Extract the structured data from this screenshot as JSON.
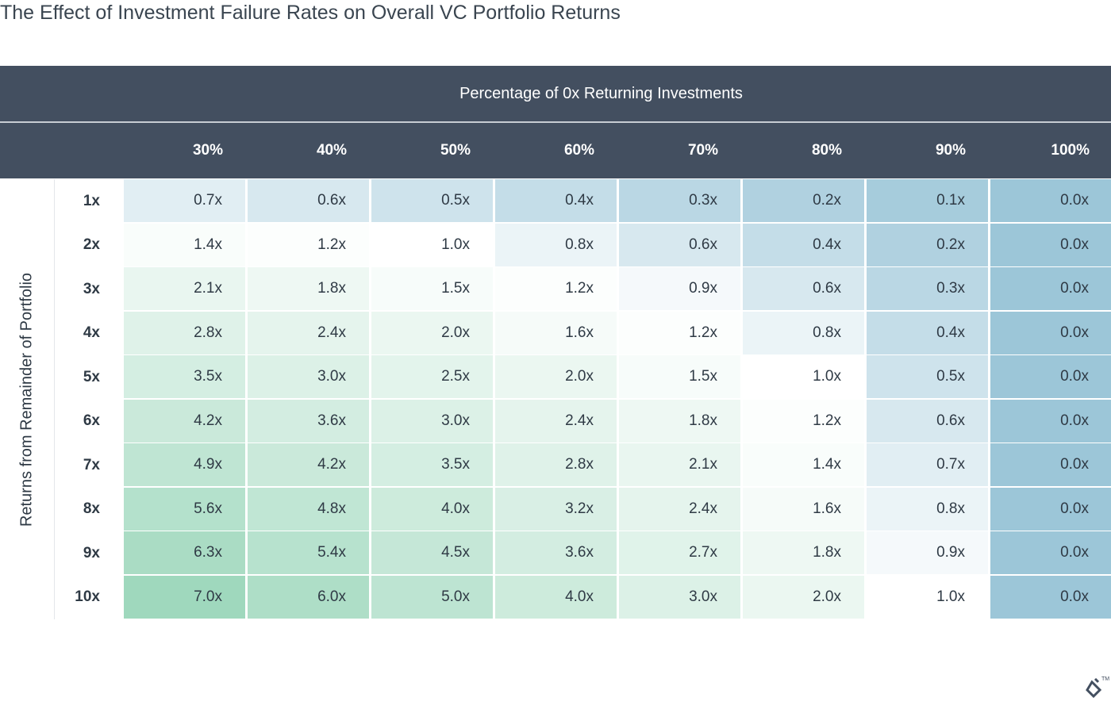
{
  "title": "The Effect of Investment Failure Rates on Overall VC Portfolio Returns",
  "chart_data": {
    "type": "table",
    "column_group_label": "Percentage of 0x Returning Investments",
    "row_group_label": "Returns from Remainder of Portfolio",
    "columns": [
      "30%",
      "40%",
      "50%",
      "60%",
      "70%",
      "80%",
      "90%",
      "100%"
    ],
    "rows": [
      "1x",
      "2x",
      "3x",
      "4x",
      "5x",
      "6x",
      "7x",
      "8x",
      "9x",
      "10x"
    ],
    "cells": [
      [
        "0.7x",
        "0.6x",
        "0.5x",
        "0.4x",
        "0.3x",
        "0.2x",
        "0.1x",
        "0.0x"
      ],
      [
        "1.4x",
        "1.2x",
        "1.0x",
        "0.8x",
        "0.6x",
        "0.4x",
        "0.2x",
        "0.0x"
      ],
      [
        "2.1x",
        "1.8x",
        "1.5x",
        "1.2x",
        "0.9x",
        "0.6x",
        "0.3x",
        "0.0x"
      ],
      [
        "2.8x",
        "2.4x",
        "2.0x",
        "1.6x",
        "1.2x",
        "0.8x",
        "0.4x",
        "0.0x"
      ],
      [
        "3.5x",
        "3.0x",
        "2.5x",
        "2.0x",
        "1.5x",
        "1.0x",
        "0.5x",
        "0.0x"
      ],
      [
        "4.2x",
        "3.6x",
        "3.0x",
        "2.4x",
        "1.8x",
        "1.2x",
        "0.6x",
        "0.0x"
      ],
      [
        "4.9x",
        "4.2x",
        "3.5x",
        "2.8x",
        "2.1x",
        "1.4x",
        "0.7x",
        "0.0x"
      ],
      [
        "5.6x",
        "4.8x",
        "4.0x",
        "3.2x",
        "2.4x",
        "1.6x",
        "0.8x",
        "0.0x"
      ],
      [
        "6.3x",
        "5.4x",
        "4.5x",
        "3.6x",
        "2.7x",
        "1.8x",
        "0.9x",
        "0.0x"
      ],
      [
        "7.0x",
        "6.0x",
        "5.0x",
        "4.0x",
        "3.0x",
        "2.0x",
        "1.0x",
        "0.0x"
      ]
    ],
    "colors": {
      "header_bg": "#434f60",
      "header_text": "#ffffff",
      "low_color": "#9cc6d8",
      "neutral_color": "#ffffff",
      "high_color": "#9fd8bd"
    },
    "color_scale_note": "diverging around row value (1.0 ratio = white)"
  }
}
